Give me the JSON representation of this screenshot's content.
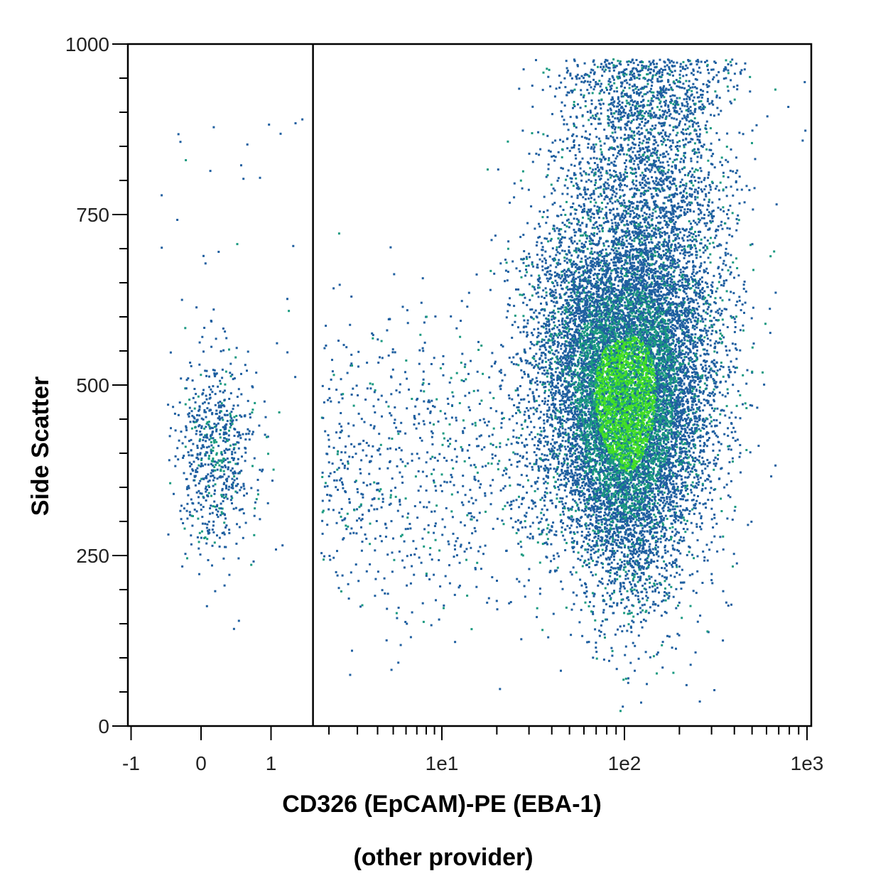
{
  "chart_data": {
    "type": "scatter",
    "title": "",
    "xlabel": "CD326 (EpCAM)-PE (EBA-1)",
    "xlabel_line2": "(other provider)",
    "ylabel": "Side Scatter",
    "x_scale": "biexponential",
    "xlim": [
      -1,
      1000
    ],
    "ylim": [
      0,
      1000
    ],
    "x_tick_labels": [
      "-1",
      "0",
      "1",
      "1e1",
      "1e2",
      "1e3"
    ],
    "x_tick_values": [
      -1,
      0,
      1,
      10,
      100,
      1000
    ],
    "y_tick_labels": [
      "0",
      "250",
      "500",
      "750",
      "1000"
    ],
    "y_tick_values": [
      0,
      250,
      500,
      750,
      1000
    ],
    "grid": false,
    "gate_x": 1.6,
    "colors": {
      "low": "#1f5fa0",
      "mid": "#1a9a80",
      "high": "#44e024",
      "axis": "#000000"
    },
    "populations": [
      {
        "center_x": 100,
        "center_y": 470,
        "spread_y": 140,
        "events": "majority"
      },
      {
        "center_x": 0.2,
        "center_y": 400,
        "spread_y": 75,
        "events": "minor"
      }
    ]
  }
}
